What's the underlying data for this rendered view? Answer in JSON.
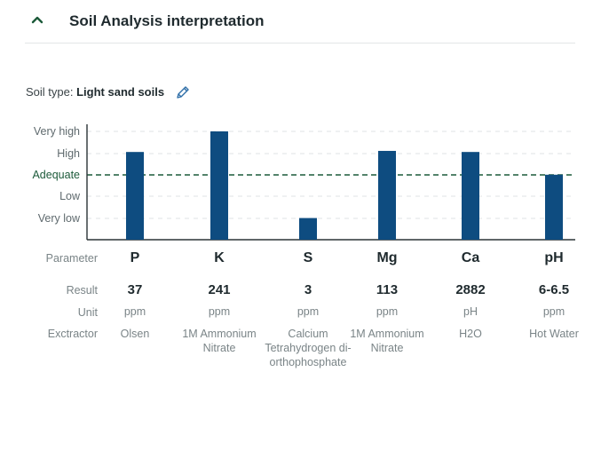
{
  "section": {
    "title": "Soil Analysis interpretation",
    "chevron_icon": "chevron-up-icon"
  },
  "soil": {
    "label": "Soil type:",
    "value": "Light sand soils",
    "edit_icon": "pencil-icon"
  },
  "colors": {
    "bar": "#0e4c80",
    "adequate_line": "#1c5a3a",
    "grid": "#dfe3e5",
    "axis": "#2b3336"
  },
  "chart_data": {
    "type": "bar",
    "levels": [
      "Very low",
      "Low",
      "Adequate",
      "High",
      "Very high"
    ],
    "reference_line": "Adequate",
    "categories": [
      "P",
      "K",
      "S",
      "Mg",
      "Ca",
      "pH"
    ],
    "values": [
      4.05,
      5.0,
      1.0,
      4.1,
      4.05,
      3.0
    ],
    "ylim": [
      0,
      5
    ],
    "grid": true
  },
  "table": {
    "row_labels": {
      "parameter": "Parameter",
      "result": "Result",
      "unit": "Unit",
      "extractor": "Exctractor"
    },
    "columns": [
      {
        "parameter": "P",
        "result": "37",
        "unit": "ppm",
        "extractor": [
          "Olsen"
        ]
      },
      {
        "parameter": "K",
        "result": "241",
        "unit": "ppm",
        "extractor": [
          "1M Ammonium",
          "Nitrate"
        ]
      },
      {
        "parameter": "S",
        "result": "3",
        "unit": "ppm",
        "extractor": [
          "Calcium",
          "Tetrahydrogen di-",
          "orthophosphate"
        ]
      },
      {
        "parameter": "Mg",
        "result": "113",
        "unit": "ppm",
        "extractor": [
          "1M Ammonium",
          "Nitrate"
        ]
      },
      {
        "parameter": "Ca",
        "result": "2882",
        "unit": "pH",
        "extractor": [
          "H2O"
        ]
      },
      {
        "parameter": "pH",
        "result": "6-6.5",
        "unit": "ppm",
        "extractor": [
          "Hot Water"
        ]
      }
    ]
  }
}
